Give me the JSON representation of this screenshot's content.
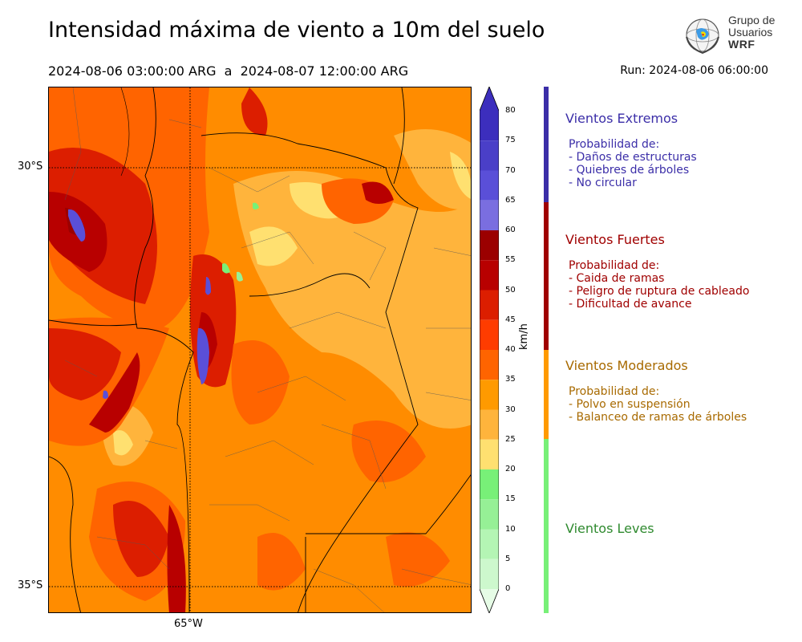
{
  "header": {
    "title": "Intensidad máxima de viento a 10m del suelo",
    "period": "2024-08-06 03:00:00 ARG  a  2024-08-07 12:00:00 ARG",
    "run": "Run: 2024-08-06 06:00:00"
  },
  "logo": {
    "line1": "Grupo de",
    "line2": "Usuarios",
    "line3": "WRF"
  },
  "map": {
    "lat_labels": [
      "30°S",
      "35°S"
    ],
    "lon_labels": [
      "65°W"
    ],
    "fill_color": "#ff8c00"
  },
  "colorbar": {
    "unit": "km/h",
    "ticks": [
      "80",
      "75",
      "70",
      "65",
      "60",
      "55",
      "50",
      "45",
      "40",
      "35",
      "30",
      "25",
      "20",
      "15",
      "10",
      "5",
      "0"
    ],
    "colors": [
      "#3c2ebd",
      "#4a3fc8",
      "#5a4fd8",
      "#7a6ee0",
      "#9b0000",
      "#b80000",
      "#dc1e00",
      "#ff3c00",
      "#ff6400",
      "#ff9a00",
      "#ffb43c",
      "#ffe070",
      "#78f078",
      "#96f096",
      "#b4f5b4",
      "#cdf8cd",
      "#e6fce6"
    ]
  },
  "categories": [
    {
      "title": "Vientos Extremos",
      "color": "#3b2ea8",
      "lines": [
        "Probabilidad de:",
        "- Daños de estructuras",
        "- Quiebres de árboles",
        "- No circular"
      ]
    },
    {
      "title": "Vientos Fuertes",
      "color": "#a00000",
      "lines": [
        "Probabilidad de:",
        "- Caida de ramas",
        "- Peligro de ruptura de cableado",
        "- Dificultad de avance"
      ]
    },
    {
      "title": "Vientos Moderados",
      "color": "#a86a00",
      "lines": [
        "Probabilidad de:",
        "- Polvo en suspensión",
        "- Balanceo de ramas de árboles"
      ]
    },
    {
      "title": "Vientos Leves",
      "color": "#2f8a2f",
      "lines": []
    }
  ],
  "category_bar_colors": [
    "#3b2ea8",
    "#a00000",
    "#ff9a00",
    "#78f078"
  ]
}
